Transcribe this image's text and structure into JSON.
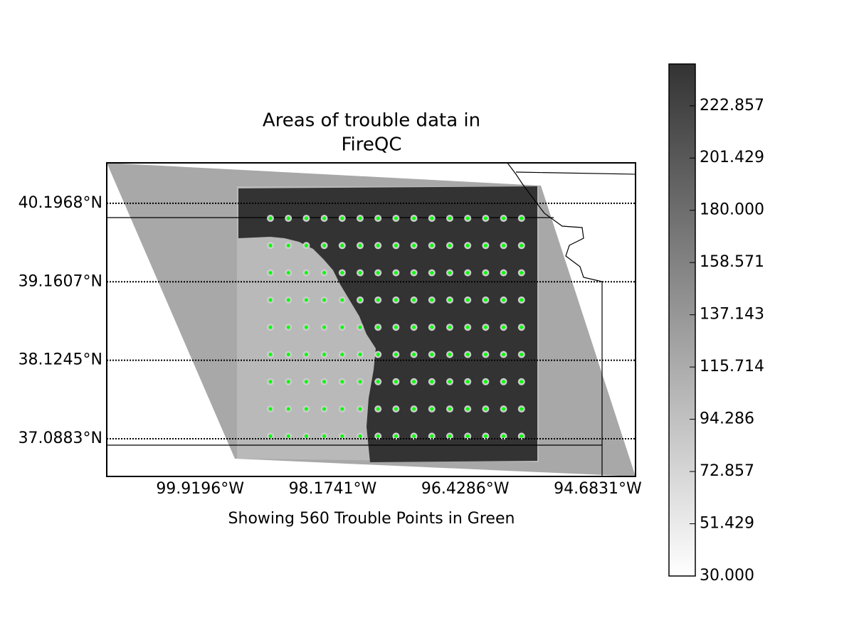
{
  "chart_data": {
    "type": "map",
    "title": [
      "Areas of trouble data in",
      "FireQC"
    ],
    "xlabel": "Showing 560 Trouble Points in Green",
    "xlim": [
      -101.149,
      -94.186
    ],
    "ylim": [
      36.591,
      40.731
    ],
    "xticks": [
      {
        "value": -99.9196,
        "label": "99.9196°W"
      },
      {
        "value": -98.1741,
        "label": "98.1741°W"
      },
      {
        "value": -96.4286,
        "label": "96.4286°W"
      },
      {
        "value": -94.6831,
        "label": "94.6831°W"
      }
    ],
    "yticks": [
      {
        "value": 40.1968,
        "label": "40.1968°N"
      },
      {
        "value": 39.1607,
        "label": "39.1607°N"
      },
      {
        "value": 38.1245,
        "label": "38.1245°N"
      },
      {
        "value": 37.0883,
        "label": "37.0883°N"
      }
    ],
    "colorbar": {
      "lim": [
        30,
        240
      ],
      "ticks": [
        {
          "value": 30,
          "label": "30.000"
        },
        {
          "value": 51.429,
          "label": "51.429"
        },
        {
          "value": 72.857,
          "label": "72.857"
        },
        {
          "value": 94.286,
          "label": "94.286"
        },
        {
          "value": 115.714,
          "label": "115.714"
        },
        {
          "value": 137.143,
          "label": "137.143"
        },
        {
          "value": 158.571,
          "label": "158.571"
        },
        {
          "value": 180,
          "label": "180.000"
        },
        {
          "value": 201.429,
          "label": "201.429"
        },
        {
          "value": 222.857,
          "label": "222.857"
        }
      ],
      "colors": [
        "#ffffff",
        "#333333"
      ]
    },
    "point_color": "#00ff00"
  }
}
